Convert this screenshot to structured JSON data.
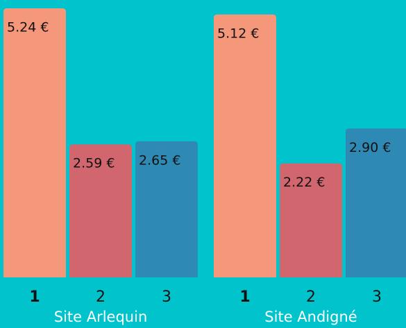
{
  "chart_data": {
    "type": "bar",
    "categories": [
      "Site Arlequin",
      "Site Andigné"
    ],
    "series": [
      {
        "name": "1",
        "color": "#f4977a",
        "values": [
          5.24,
          5.12
        ],
        "value_labels": [
          "5.24 €",
          "5.12 €"
        ]
      },
      {
        "name": "2",
        "color": "#d1666f",
        "values": [
          2.59,
          2.22
        ],
        "value_labels": [
          "2.59 €",
          "2.22 €"
        ]
      },
      {
        "name": "3",
        "color": "#2e8ab5",
        "values": [
          2.65,
          2.9
        ],
        "value_labels": [
          "2.65 €",
          "2.90 €"
        ]
      }
    ],
    "background": "#00c3cc"
  }
}
